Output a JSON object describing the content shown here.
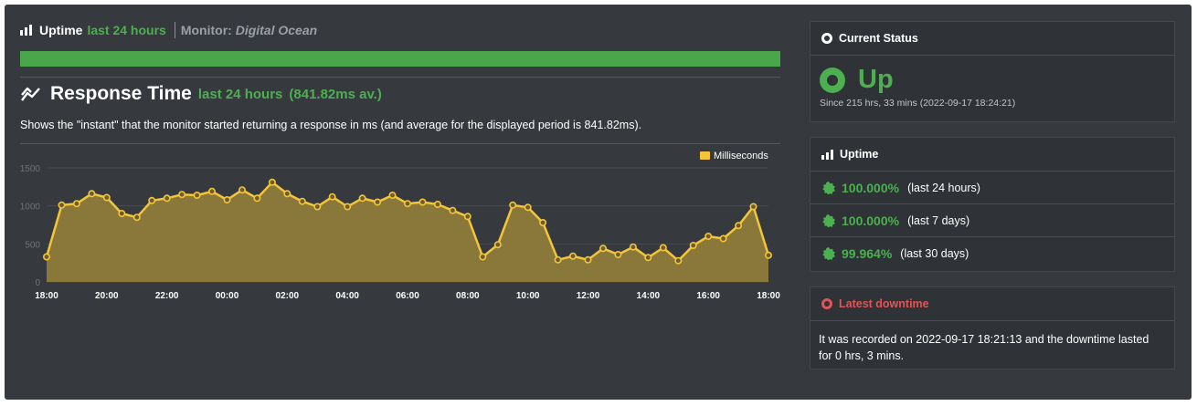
{
  "header": {
    "uptime_label": "Uptime",
    "period_label": "last 24 hours",
    "monitor_prefix": "Monitor:",
    "monitor_name": "Digital Ocean",
    "uptime_bar_color": "#4aa64a",
    "icon": "bar-chart-icon"
  },
  "response_time": {
    "title": "Response Time",
    "period_label": "last 24 hours",
    "average_label": "(841.82ms av.)",
    "description": "Shows the \"instant\" that the monitor started returning a response in ms (and average for the displayed period is 841.82ms).",
    "icon": "line-chart-icon"
  },
  "chart_data": {
    "type": "area",
    "legend": "Milliseconds",
    "legend_position": "top-right",
    "x_ticks": [
      "18:00",
      "20:00",
      "22:00",
      "00:00",
      "02:00",
      "04:00",
      "06:00",
      "08:00",
      "10:00",
      "12:00",
      "14:00",
      "16:00",
      "18:00"
    ],
    "y_ticks": [
      "0",
      "500",
      "1000",
      "1500"
    ],
    "ylim": [
      0,
      1500
    ],
    "grid": true,
    "series": [
      {
        "name": "Milliseconds",
        "color": "#f4c53a",
        "fill": "#8f7b3a",
        "values": [
          330,
          1010,
          1030,
          1160,
          1110,
          900,
          850,
          1070,
          1100,
          1150,
          1140,
          1190,
          1080,
          1210,
          1100,
          1310,
          1160,
          1060,
          990,
          1120,
          990,
          1100,
          1050,
          1140,
          1030,
          1050,
          1020,
          940,
          860,
          330,
          490,
          1010,
          980,
          780,
          290,
          340,
          290,
          440,
          360,
          460,
          320,
          450,
          280,
          480,
          600,
          570,
          740,
          990,
          350
        ]
      }
    ]
  },
  "current_status": {
    "title": "Current Status",
    "status": "Up",
    "since": "Since 215 hrs, 33 mins (2022-09-17 18:24:21)",
    "status_color": "#4caf50"
  },
  "uptime": {
    "title": "Uptime",
    "rows": [
      {
        "percent": "100.000%",
        "period": "(last 24 hours)"
      },
      {
        "percent": "100.000%",
        "period": "(last 7 days)"
      },
      {
        "percent": "99.964%",
        "period": "(last 30 days)"
      }
    ],
    "icon": "badge-check-icon"
  },
  "latest_downtime": {
    "title": "Latest downtime",
    "text": "It was recorded on 2022-09-17 18:21:13 and the downtime lasted for 0 hrs, 3 mins.",
    "title_color": "#e05555"
  }
}
